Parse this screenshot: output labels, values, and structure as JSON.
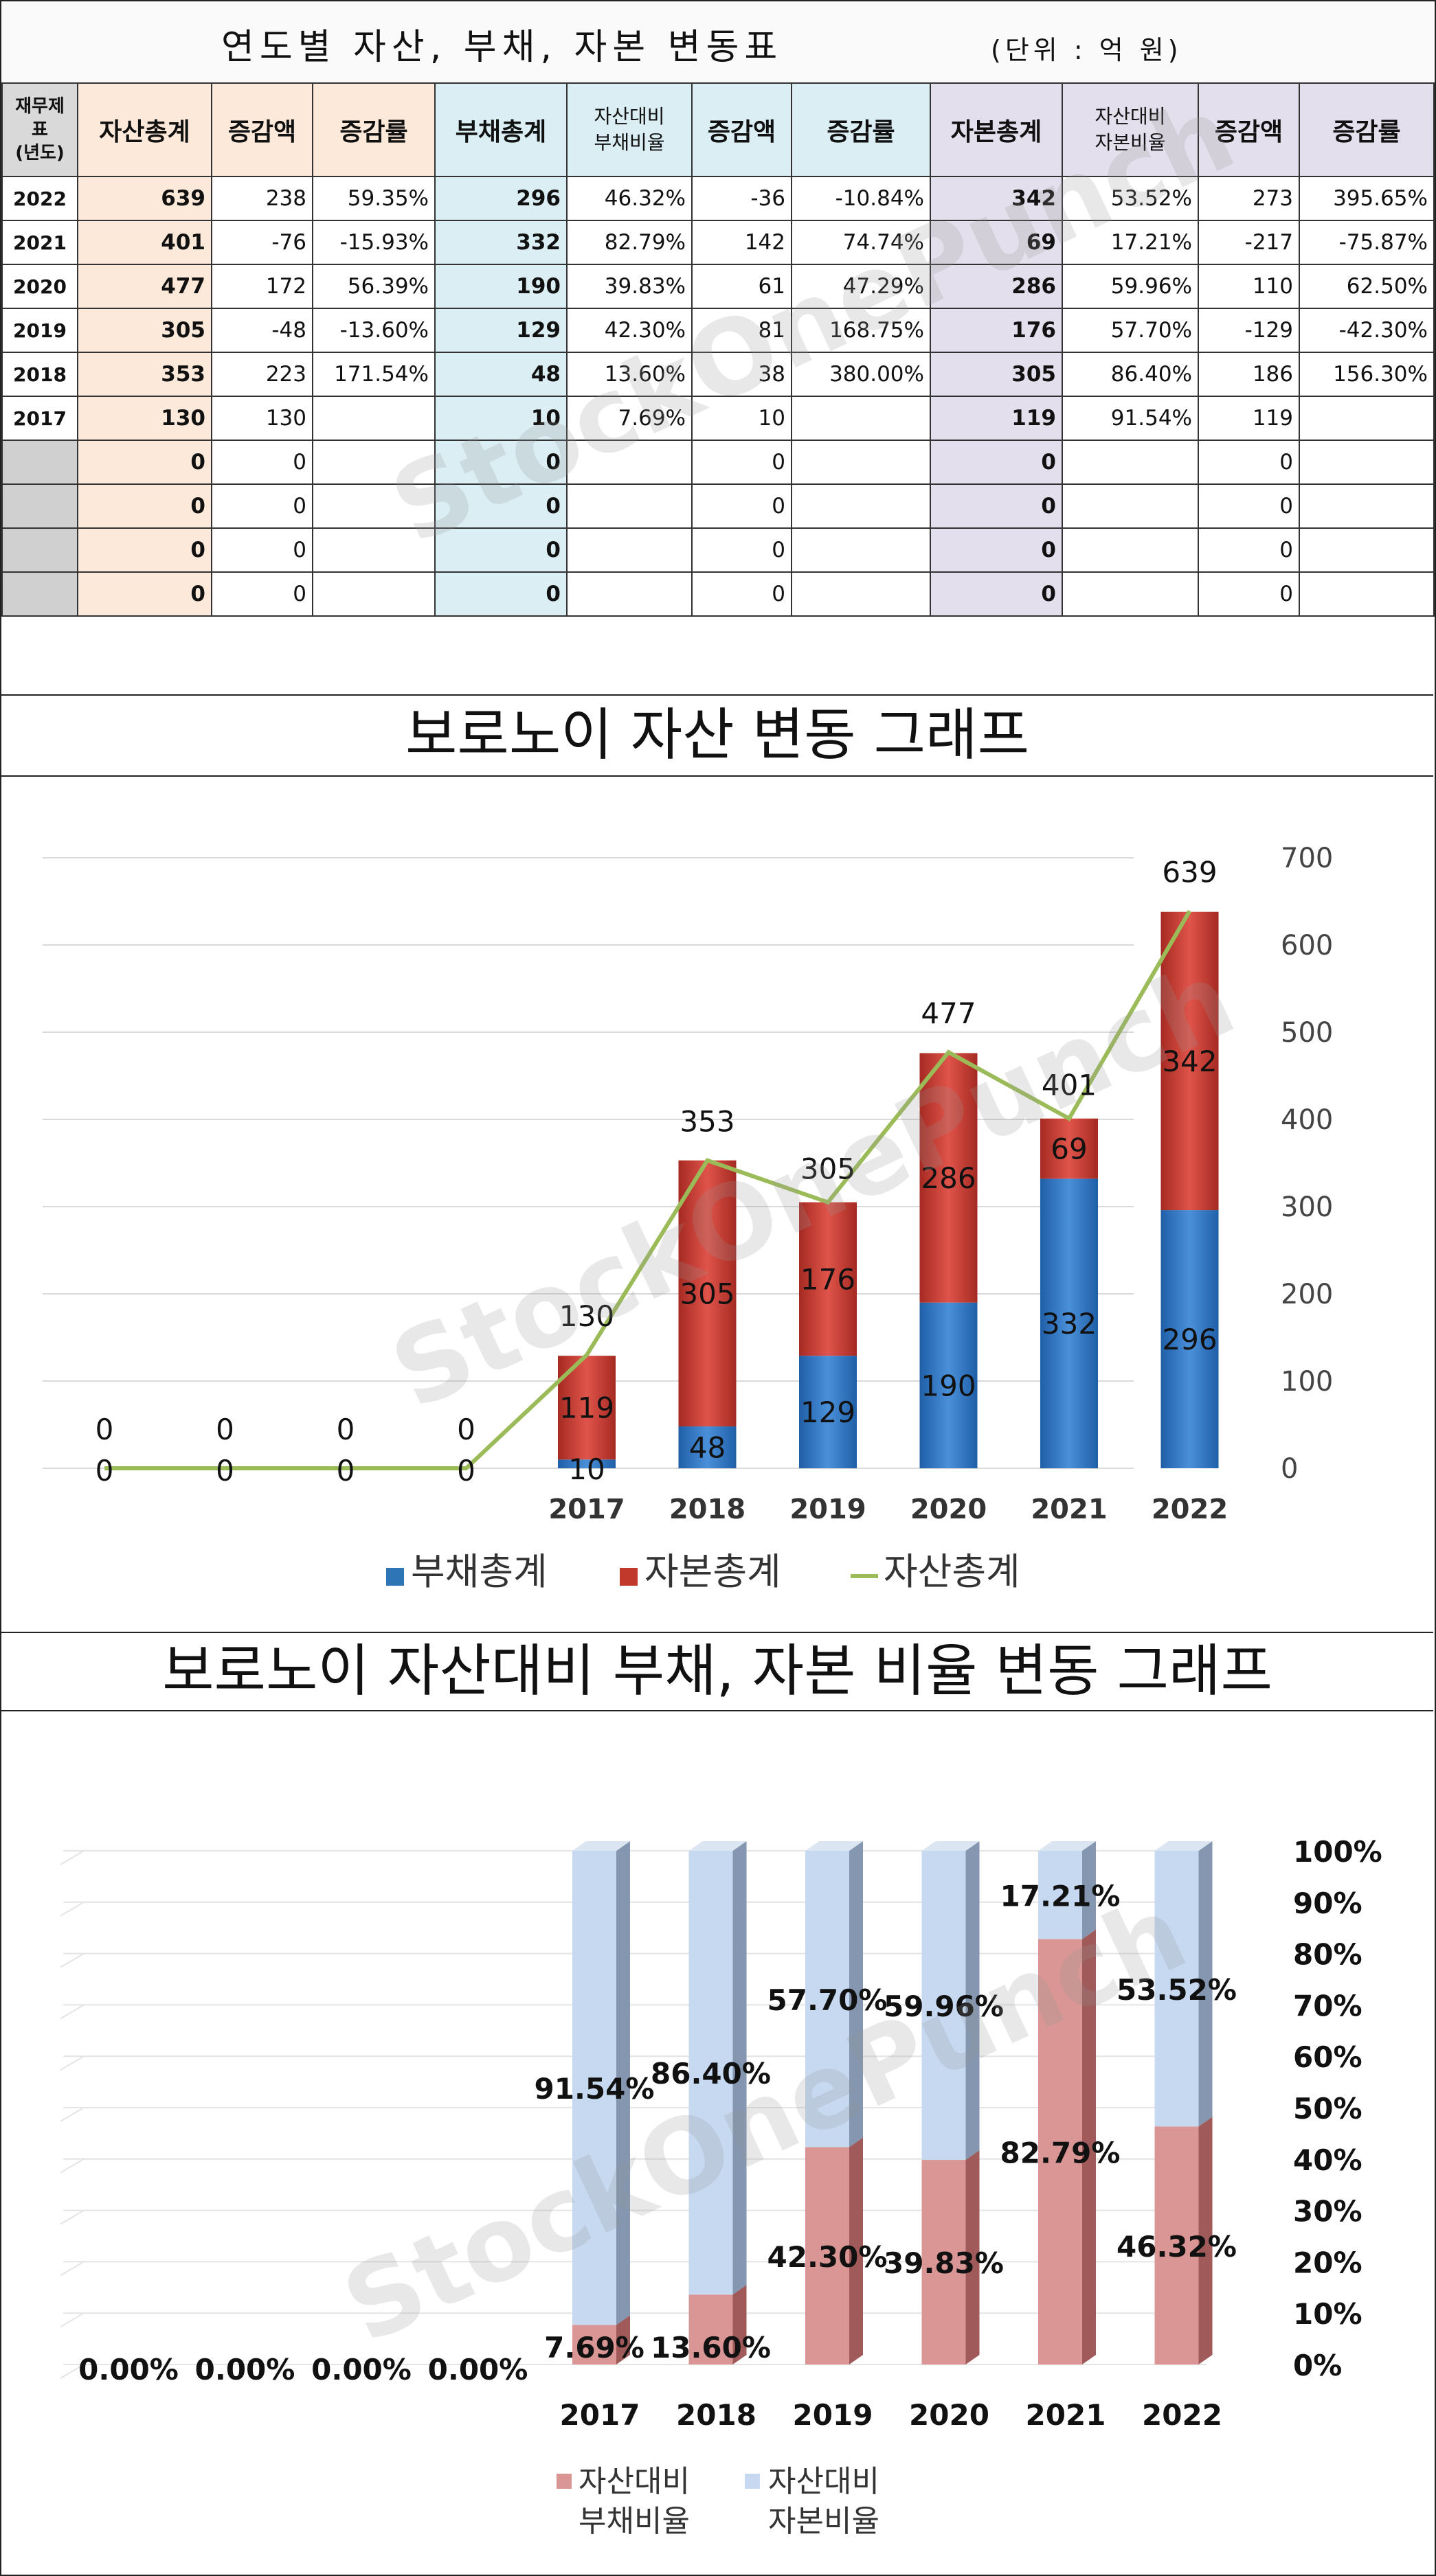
{
  "table": {
    "title": "연도별 자산, 부채, 자본 변동표",
    "unit": "(단위 : 억 원)",
    "headers": {
      "year": "재무제표\n(년도)",
      "assets": "자산총계",
      "assets_change": "증감액",
      "assets_rate": "증감률",
      "debt": "부채총계",
      "debt_ratio": "자산대비\n부채비율",
      "debt_change": "증감액",
      "debt_rate": "증감률",
      "capital": "자본총계",
      "capital_ratio": "자산대비\n자본비율",
      "capital_change": "증감액",
      "capital_rate": "증감률"
    },
    "rows": [
      {
        "year": "2022",
        "assets": "639",
        "assets_change": "238",
        "assets_rate": "59.35%",
        "debt": "296",
        "debt_ratio": "46.32%",
        "debt_change": "-36",
        "debt_rate": "-10.84%",
        "capital": "342",
        "capital_ratio": "53.52%",
        "capital_change": "273",
        "capital_rate": "395.65%"
      },
      {
        "year": "2021",
        "assets": "401",
        "assets_change": "-76",
        "assets_rate": "-15.93%",
        "debt": "332",
        "debt_ratio": "82.79%",
        "debt_change": "142",
        "debt_rate": "74.74%",
        "capital": "69",
        "capital_ratio": "17.21%",
        "capital_change": "-217",
        "capital_rate": "-75.87%"
      },
      {
        "year": "2020",
        "assets": "477",
        "assets_change": "172",
        "assets_rate": "56.39%",
        "debt": "190",
        "debt_ratio": "39.83%",
        "debt_change": "61",
        "debt_rate": "47.29%",
        "capital": "286",
        "capital_ratio": "59.96%",
        "capital_change": "110",
        "capital_rate": "62.50%"
      },
      {
        "year": "2019",
        "assets": "305",
        "assets_change": "-48",
        "assets_rate": "-13.60%",
        "debt": "129",
        "debt_ratio": "42.30%",
        "debt_change": "81",
        "debt_rate": "168.75%",
        "capital": "176",
        "capital_ratio": "57.70%",
        "capital_change": "-129",
        "capital_rate": "-42.30%"
      },
      {
        "year": "2018",
        "assets": "353",
        "assets_change": "223",
        "assets_rate": "171.54%",
        "debt": "48",
        "debt_ratio": "13.60%",
        "debt_change": "38",
        "debt_rate": "380.00%",
        "capital": "305",
        "capital_ratio": "86.40%",
        "capital_change": "186",
        "capital_rate": "156.30%"
      },
      {
        "year": "2017",
        "assets": "130",
        "assets_change": "130",
        "assets_rate": "",
        "debt": "10",
        "debt_ratio": "7.69%",
        "debt_change": "10",
        "debt_rate": "",
        "capital": "119",
        "capital_ratio": "91.54%",
        "capital_change": "119",
        "capital_rate": ""
      },
      {
        "year": "",
        "assets": "0",
        "assets_change": "0",
        "assets_rate": "",
        "debt": "0",
        "debt_ratio": "",
        "debt_change": "0",
        "debt_rate": "",
        "capital": "0",
        "capital_ratio": "",
        "capital_change": "0",
        "capital_rate": ""
      },
      {
        "year": "",
        "assets": "0",
        "assets_change": "0",
        "assets_rate": "",
        "debt": "0",
        "debt_ratio": "",
        "debt_change": "0",
        "debt_rate": "",
        "capital": "0",
        "capital_ratio": "",
        "capital_change": "0",
        "capital_rate": ""
      },
      {
        "year": "",
        "assets": "0",
        "assets_change": "0",
        "assets_rate": "",
        "debt": "0",
        "debt_ratio": "",
        "debt_change": "0",
        "debt_rate": "",
        "capital": "0",
        "capital_ratio": "",
        "capital_change": "0",
        "capital_rate": ""
      },
      {
        "year": "",
        "assets": "0",
        "assets_change": "0",
        "assets_rate": "",
        "debt": "0",
        "debt_ratio": "",
        "debt_change": "0",
        "debt_rate": "",
        "capital": "0",
        "capital_ratio": "",
        "capital_change": "0",
        "capital_rate": ""
      }
    ]
  },
  "watermark": "StockOnePunch",
  "colors": {
    "asset_bg": "#fde9d9",
    "debt_bg": "#daeef3",
    "capital_bg": "#e4dfec",
    "negative": "#c00000",
    "debt_bar": "#2e75b6",
    "capital_bar": "#c0392b",
    "asset_line": "#9bbb59",
    "ratio_debt": "#d99694",
    "ratio_capital": "#c6d9f1"
  },
  "chart_data": [
    {
      "type": "bar",
      "stacked": true,
      "title": "보로노이 자산 변동 그래프",
      "categories": [
        "",
        "",
        "",
        "",
        "2017",
        "2018",
        "2019",
        "2020",
        "2021",
        "2022"
      ],
      "series": [
        {
          "name": "부채총계",
          "kind": "bar",
          "values": [
            0,
            0,
            0,
            0,
            10,
            48,
            129,
            190,
            332,
            296
          ]
        },
        {
          "name": "자본총계",
          "kind": "bar",
          "values": [
            0,
            0,
            0,
            0,
            119,
            305,
            176,
            286,
            69,
            342
          ]
        },
        {
          "name": "자산총계",
          "kind": "line",
          "values": [
            0,
            0,
            0,
            0,
            130,
            353,
            305,
            477,
            401,
            639
          ]
        }
      ],
      "ylim": [
        0,
        700
      ],
      "yticks": [
        "0",
        "100",
        "200",
        "300",
        "400",
        "500",
        "600",
        "700"
      ],
      "y_axis_side": "right",
      "grid": true,
      "legend": "bottom"
    },
    {
      "type": "bar",
      "stacked": true,
      "percent": true,
      "title": "보로노이 자산대비 부채, 자본 비율 변동 그래프",
      "categories": [
        "",
        "",
        "",
        "",
        "2017",
        "2018",
        "2019",
        "2020",
        "2021",
        "2022"
      ],
      "series": [
        {
          "name": "자산대비 부채비율",
          "values": [
            0,
            0,
            0,
            0,
            7.69,
            13.6,
            42.3,
            39.83,
            82.79,
            46.32
          ],
          "labels": [
            "0.00%",
            "0.00%",
            "0.00%",
            "0.00%",
            "7.69%",
            "13.60%",
            "42.30%",
            "39.83%",
            "82.79%",
            "46.32%"
          ]
        },
        {
          "name": "자산대비 자본비율",
          "values": [
            0,
            0,
            0,
            0,
            91.54,
            86.4,
            57.7,
            59.96,
            17.21,
            53.52
          ],
          "labels": [
            "",
            "",
            "",
            "",
            "91.54%",
            "86.40%",
            "57.70%",
            "59.96%",
            "17.21%",
            "53.52%"
          ]
        }
      ],
      "legend_labels": [
        [
          "자산대비",
          "부채비율"
        ],
        [
          "자산대비",
          "자본비율"
        ]
      ],
      "ylim": [
        0,
        100
      ],
      "yticks": [
        "0%",
        "10%",
        "20%",
        "30%",
        "40%",
        "50%",
        "60%",
        "70%",
        "80%",
        "90%",
        "100%"
      ],
      "y_axis_side": "right",
      "grid": true,
      "legend": "bottom"
    }
  ]
}
